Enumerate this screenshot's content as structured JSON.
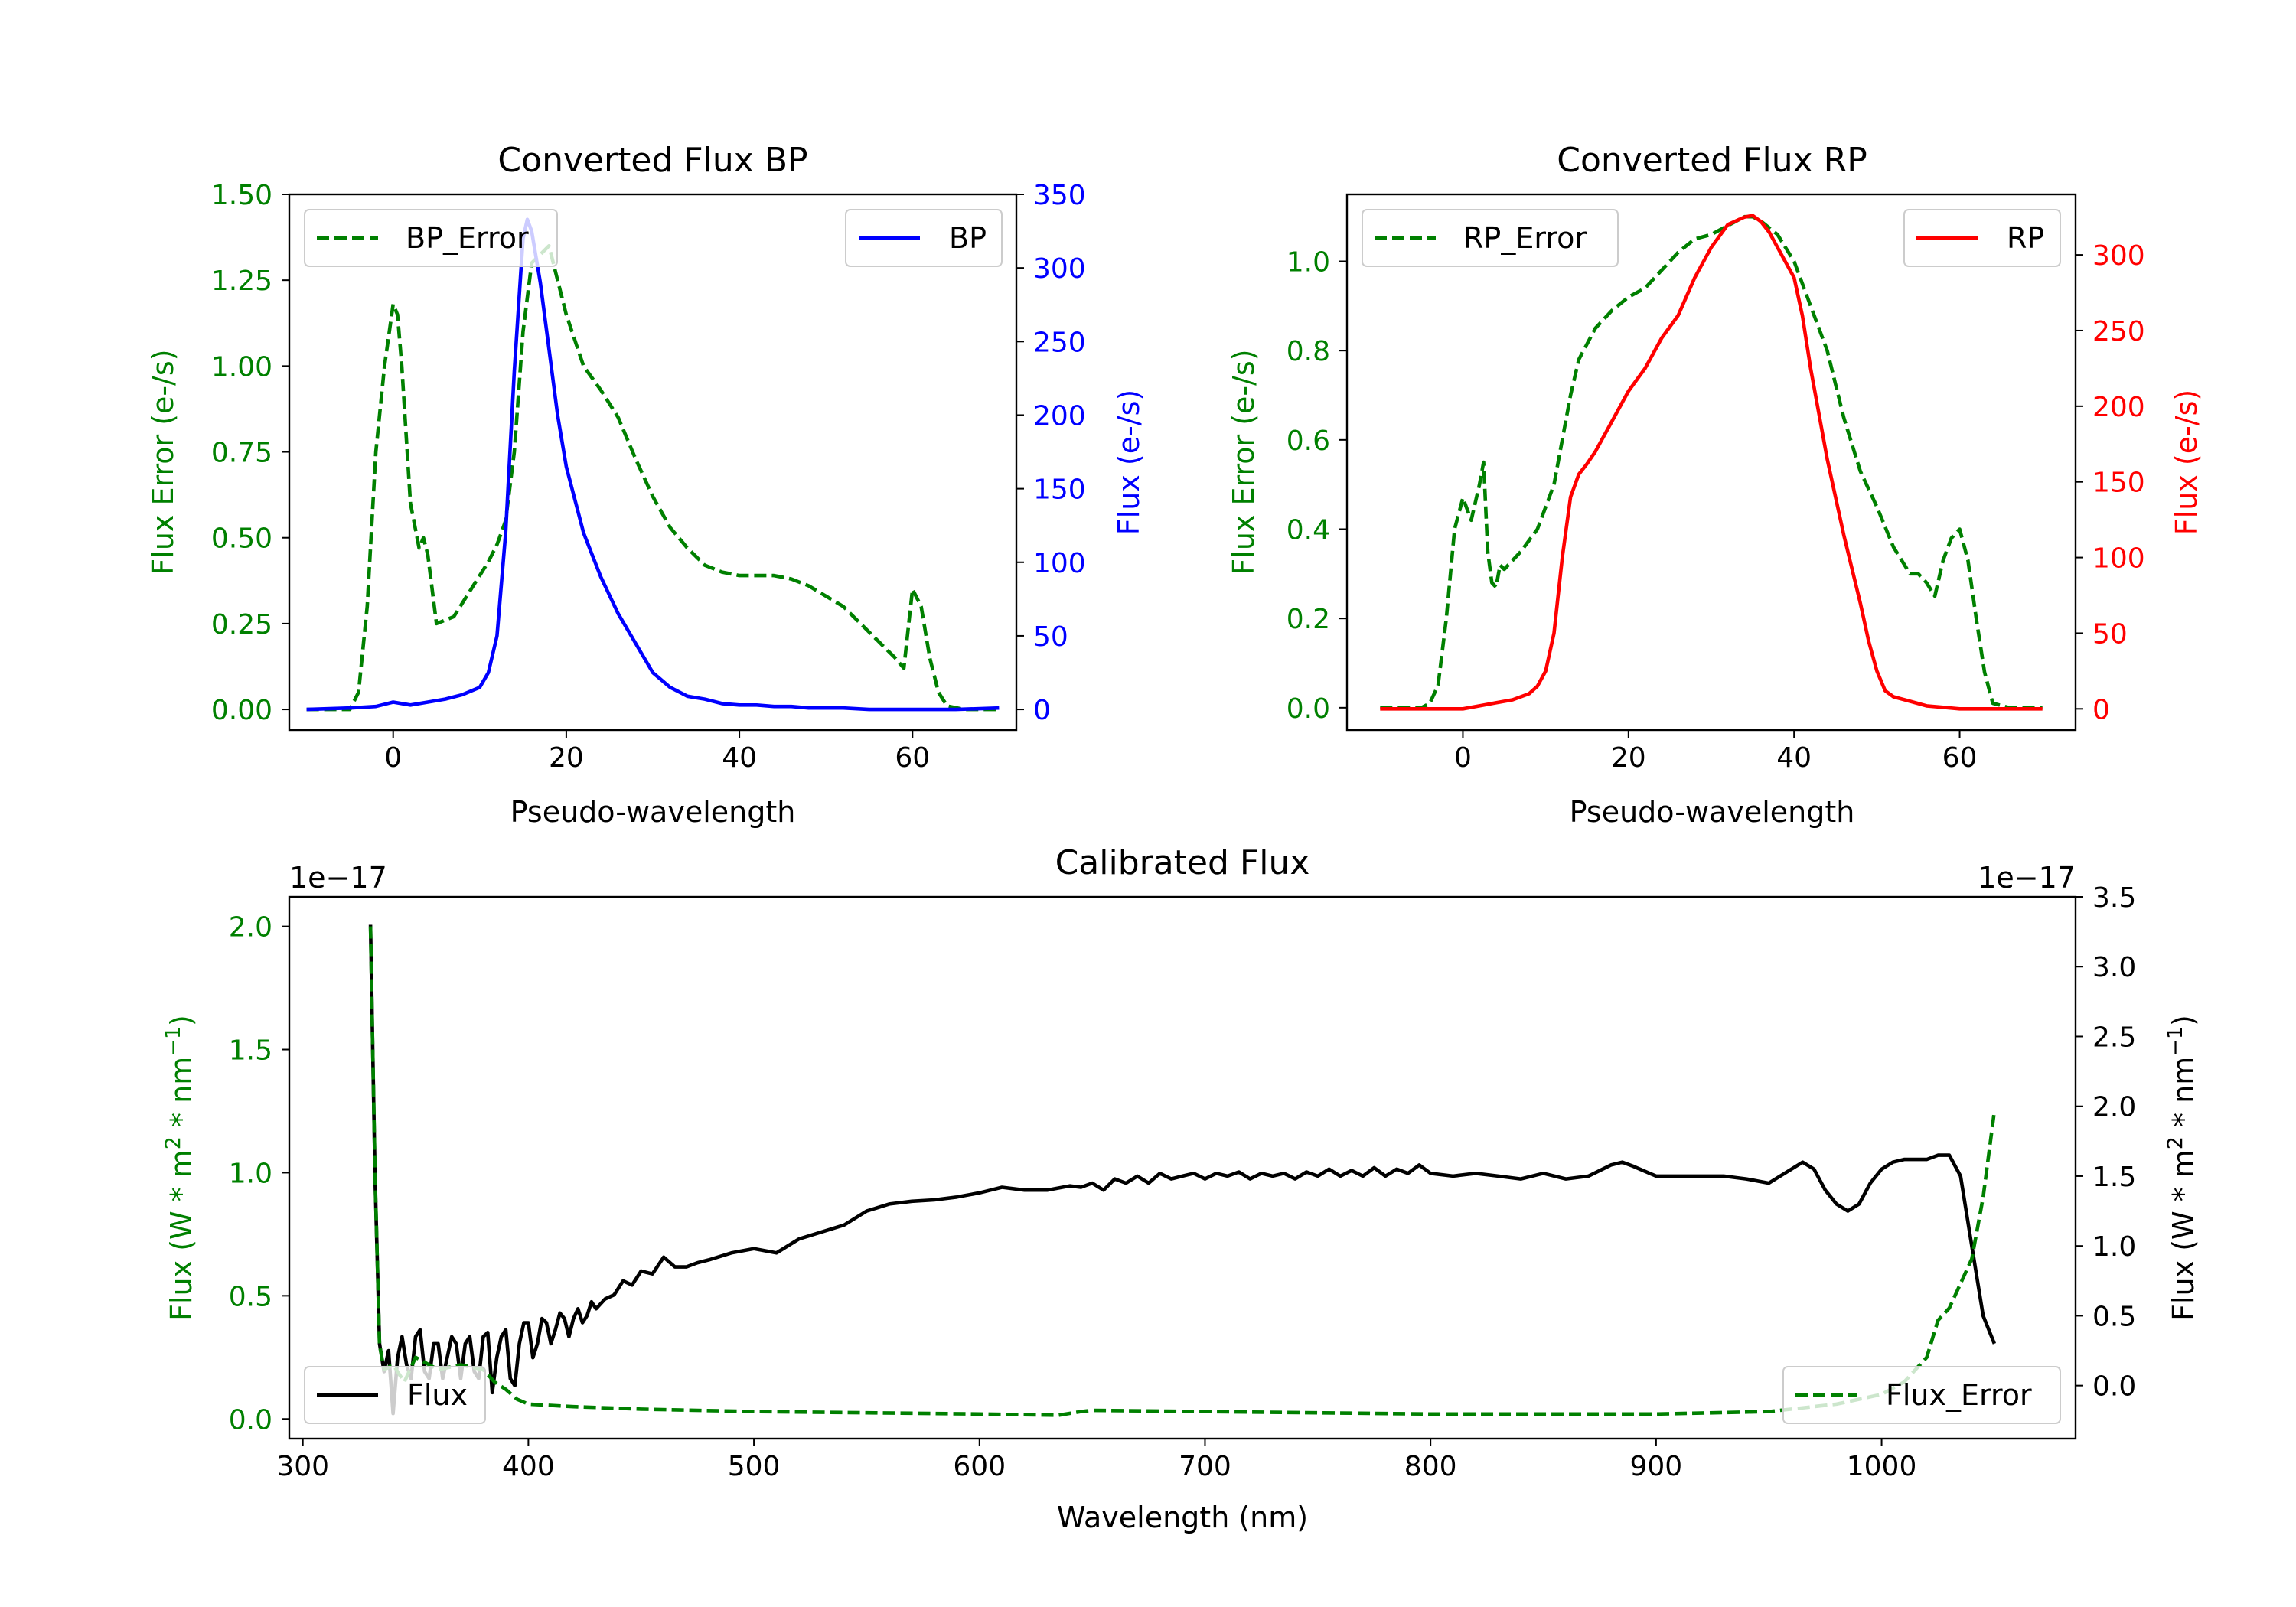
{
  "colors": {
    "green": "#008000",
    "blue": "#0000ff",
    "red": "#ff0000",
    "black": "#000000"
  },
  "chart_data": [
    {
      "id": "bp",
      "type": "line",
      "title": "Converted Flux BP",
      "xlabel": "Pseudo-wavelength",
      "ylabel_left": "Flux Error (e-/s)",
      "ylabel_right": "Flux (e-/s)",
      "xlim": [
        -12,
        72
      ],
      "ylim_left": [
        -0.06,
        1.5
      ],
      "ylim_right": [
        -14,
        350
      ],
      "xticks": [
        0,
        20,
        40,
        60
      ],
      "xtick_labels": [
        "0",
        "20",
        "40",
        "60"
      ],
      "yticks_left": [
        0,
        0.25,
        0.5,
        0.75,
        1.0,
        1.25,
        1.5
      ],
      "ytick_labels_left": [
        "0.00",
        "0.25",
        "0.50",
        "0.75",
        "1.00",
        "1.25",
        "1.50"
      ],
      "yticks_right": [
        0,
        50,
        100,
        150,
        200,
        250,
        300,
        350
      ],
      "ytick_labels_right": [
        "0",
        "50",
        "100",
        "150",
        "200",
        "250",
        "300",
        "350"
      ],
      "legend": [
        {
          "label": "BP_Error",
          "side": "left",
          "position": "top-left"
        },
        {
          "label": "BP",
          "side": "right",
          "position": "top-right"
        }
      ],
      "series": [
        {
          "name": "BP_Error",
          "axis": "left",
          "style": "dashed",
          "color": "#008000",
          "x": [
            -10,
            -5,
            -4,
            -3,
            -2,
            -1,
            0,
            0.5,
            1,
            2,
            3,
            3.5,
            4,
            5,
            7,
            9,
            11,
            12,
            13,
            14,
            15,
            16,
            18,
            20,
            22,
            24,
            26,
            28,
            30,
            32,
            34,
            36,
            38,
            40,
            42,
            44,
            46,
            48,
            50,
            52,
            54,
            56,
            58,
            59,
            60,
            61,
            62,
            63,
            64,
            66,
            68,
            70
          ],
          "y": [
            0,
            0,
            0.05,
            0.3,
            0.75,
            1.0,
            1.18,
            1.15,
            1.0,
            0.6,
            0.47,
            0.5,
            0.45,
            0.25,
            0.27,
            0.35,
            0.43,
            0.48,
            0.55,
            0.75,
            1.1,
            1.3,
            1.35,
            1.15,
            1.0,
            0.93,
            0.85,
            0.73,
            0.62,
            0.53,
            0.47,
            0.42,
            0.4,
            0.39,
            0.39,
            0.39,
            0.38,
            0.36,
            0.33,
            0.3,
            0.25,
            0.2,
            0.15,
            0.12,
            0.35,
            0.3,
            0.15,
            0.05,
            0.01,
            0,
            0,
            0
          ]
        },
        {
          "name": "BP",
          "axis": "right",
          "style": "solid",
          "color": "#0000ff",
          "x": [
            -10,
            -5,
            -2,
            0,
            2,
            4,
            6,
            8,
            10,
            11,
            12,
            13,
            14,
            15,
            15.5,
            16,
            17,
            18,
            19,
            20,
            22,
            24,
            26,
            28,
            30,
            32,
            34,
            36,
            38,
            40,
            42,
            44,
            46,
            48,
            50,
            52,
            55,
            58,
            60,
            62,
            65,
            70
          ],
          "y": [
            0,
            1,
            2,
            5,
            3,
            5,
            7,
            10,
            15,
            25,
            50,
            120,
            230,
            320,
            333,
            325,
            290,
            245,
            200,
            165,
            120,
            90,
            65,
            45,
            25,
            15,
            9,
            7,
            4,
            3,
            3,
            2,
            2,
            1,
            1,
            1,
            0,
            0,
            0,
            0,
            0,
            1
          ]
        }
      ]
    },
    {
      "id": "rp",
      "type": "line",
      "title": "Converted Flux RP",
      "xlabel": "Pseudo-wavelength",
      "ylabel_left": "Flux Error (e-/s)",
      "ylabel_right": "Flux (e-/s)",
      "xlim": [
        -14,
        74
      ],
      "ylim_left": [
        -0.05,
        1.15
      ],
      "ylim_right": [
        -14,
        340
      ],
      "xticks": [
        0,
        20,
        40,
        60
      ],
      "xtick_labels": [
        "0",
        "20",
        "40",
        "60"
      ],
      "yticks_left": [
        0,
        0.2,
        0.4,
        0.6,
        0.8,
        1.0
      ],
      "ytick_labels_left": [
        "0.0",
        "0.2",
        "0.4",
        "0.6",
        "0.8",
        "1.0"
      ],
      "yticks_right": [
        0,
        50,
        100,
        150,
        200,
        250,
        300
      ],
      "ytick_labels_right": [
        "0",
        "50",
        "100",
        "150",
        "200",
        "250",
        "300"
      ],
      "legend": [
        {
          "label": "RP_Error",
          "side": "left",
          "position": "top-left"
        },
        {
          "label": "RP",
          "side": "right",
          "position": "top-right"
        }
      ],
      "series": [
        {
          "name": "RP_Error",
          "axis": "left",
          "style": "dashed",
          "color": "#008000",
          "x": [
            -10,
            -5,
            -4,
            -3,
            -2,
            -1,
            0,
            1,
            2,
            2.5,
            3,
            3.5,
            4,
            4.5,
            5,
            7,
            9,
            11,
            12,
            13,
            14,
            16,
            18,
            20,
            22,
            24,
            26,
            28,
            30,
            32,
            34,
            35,
            36,
            38,
            40,
            42,
            44,
            46,
            48,
            50,
            52,
            54,
            55,
            56,
            57,
            58,
            59,
            60,
            61,
            62,
            63,
            64,
            66,
            70
          ],
          "y": [
            0,
            0,
            0.01,
            0.05,
            0.2,
            0.4,
            0.47,
            0.42,
            0.5,
            0.55,
            0.35,
            0.28,
            0.27,
            0.32,
            0.31,
            0.35,
            0.4,
            0.5,
            0.6,
            0.7,
            0.78,
            0.85,
            0.89,
            0.92,
            0.94,
            0.98,
            1.02,
            1.05,
            1.06,
            1.08,
            1.1,
            1.1,
            1.09,
            1.06,
            1.0,
            0.9,
            0.8,
            0.65,
            0.53,
            0.45,
            0.36,
            0.3,
            0.3,
            0.28,
            0.25,
            0.33,
            0.38,
            0.4,
            0.33,
            0.2,
            0.08,
            0.01,
            0,
            0
          ]
        },
        {
          "name": "RP",
          "axis": "right",
          "style": "solid",
          "color": "#ff0000",
          "x": [
            -10,
            -5,
            0,
            2,
            4,
            6,
            8,
            9,
            10,
            11,
            12,
            13,
            14,
            15,
            16,
            18,
            20,
            22,
            24,
            26,
            28,
            30,
            32,
            34,
            35,
            36,
            37,
            38,
            40,
            41,
            42,
            44,
            46,
            48,
            49,
            50,
            51,
            52,
            54,
            56,
            58,
            60,
            62,
            65,
            70
          ],
          "y": [
            0,
            0,
            0,
            2,
            4,
            6,
            10,
            15,
            25,
            50,
            100,
            140,
            155,
            162,
            170,
            190,
            210,
            225,
            245,
            260,
            285,
            305,
            320,
            325,
            326,
            322,
            315,
            305,
            285,
            260,
            225,
            165,
            115,
            70,
            45,
            25,
            12,
            8,
            5,
            2,
            1,
            0,
            0,
            0,
            0
          ]
        }
      ]
    },
    {
      "id": "calibrated",
      "type": "line",
      "title": "Calibrated Flux",
      "xlabel": "Wavelength (nm)",
      "ylabel_left": "Flux (W * m$^2$ * nm$^{-1}$)",
      "ylabel_right": "Flux (W * m$^2$ * nm$^{-1}$)",
      "offset_left": "1e−17",
      "offset_right": "1e−17",
      "xlim": [
        294,
        1086
      ],
      "ylim_left": [
        -0.08,
        2.12
      ],
      "ylim_right": [
        -0.38,
        3.5
      ],
      "xticks": [
        300,
        400,
        500,
        600,
        700,
        800,
        900,
        1000
      ],
      "xtick_labels": [
        "300",
        "400",
        "500",
        "600",
        "700",
        "800",
        "900",
        "1000"
      ],
      "yticks_left": [
        0,
        0.5,
        1.0,
        1.5,
        2.0
      ],
      "ytick_labels_left": [
        "0.0",
        "0.5",
        "1.0",
        "1.5",
        "2.0"
      ],
      "yticks_right": [
        0,
        0.5,
        1.0,
        1.5,
        2.0,
        2.5,
        3.0,
        3.5
      ],
      "ytick_labels_right": [
        "0.0",
        "0.5",
        "1.0",
        "1.5",
        "2.0",
        "2.5",
        "3.0",
        "3.5"
      ],
      "legend": [
        {
          "label": "Flux",
          "side": "right",
          "position": "bottom-left"
        },
        {
          "label": "Flux_Error",
          "side": "left",
          "position": "bottom-right"
        }
      ],
      "series": [
        {
          "name": "Flux",
          "axis": "right",
          "style": "solid",
          "color": "#000000",
          "x": [
            330,
            332,
            334,
            336,
            338,
            340,
            342,
            344,
            346,
            348,
            350,
            352,
            354,
            356,
            358,
            360,
            362,
            364,
            366,
            368,
            370,
            372,
            374,
            376,
            378,
            380,
            382,
            384,
            386,
            388,
            390,
            392,
            394,
            396,
            398,
            400,
            402,
            404,
            406,
            408,
            410,
            412,
            414,
            416,
            418,
            420,
            422,
            424,
            426,
            428,
            430,
            434,
            438,
            442,
            446,
            450,
            455,
            460,
            465,
            470,
            475,
            480,
            490,
            500,
            510,
            520,
            530,
            540,
            550,
            560,
            570,
            580,
            590,
            600,
            605,
            610,
            620,
            630,
            640,
            645,
            650,
            655,
            660,
            665,
            670,
            675,
            680,
            685,
            690,
            695,
            700,
            705,
            710,
            715,
            720,
            725,
            730,
            735,
            740,
            745,
            750,
            755,
            760,
            765,
            770,
            775,
            780,
            785,
            790,
            795,
            800,
            810,
            820,
            830,
            840,
            850,
            860,
            870,
            880,
            885,
            890,
            900,
            910,
            920,
            930,
            940,
            950,
            960,
            965,
            970,
            975,
            980,
            985,
            990,
            995,
            1000,
            1005,
            1010,
            1020,
            1025,
            1030,
            1035,
            1040,
            1045,
            1050
          ],
          "y": [
            3.3,
            1.5,
            0.3,
            0.1,
            0.25,
            -0.2,
            0.2,
            0.35,
            0.15,
            0.05,
            0.35,
            0.4,
            0.1,
            0.05,
            0.3,
            0.3,
            0.05,
            0.2,
            0.35,
            0.3,
            0.05,
            0.3,
            0.35,
            0.1,
            0.05,
            0.35,
            0.38,
            -0.05,
            0.2,
            0.35,
            0.4,
            0.05,
            0.0,
            0.3,
            0.45,
            0.45,
            0.2,
            0.3,
            0.48,
            0.45,
            0.3,
            0.4,
            0.52,
            0.48,
            0.35,
            0.48,
            0.55,
            0.45,
            0.5,
            0.6,
            0.55,
            0.62,
            0.65,
            0.75,
            0.72,
            0.82,
            0.8,
            0.92,
            0.85,
            0.85,
            0.88,
            0.9,
            0.95,
            0.98,
            0.95,
            1.05,
            1.1,
            1.15,
            1.25,
            1.3,
            1.32,
            1.33,
            1.35,
            1.38,
            1.4,
            1.42,
            1.4,
            1.4,
            1.43,
            1.42,
            1.45,
            1.4,
            1.48,
            1.45,
            1.5,
            1.45,
            1.52,
            1.48,
            1.5,
            1.52,
            1.48,
            1.52,
            1.5,
            1.53,
            1.48,
            1.52,
            1.5,
            1.52,
            1.48,
            1.53,
            1.5,
            1.55,
            1.5,
            1.54,
            1.5,
            1.56,
            1.5,
            1.55,
            1.52,
            1.58,
            1.52,
            1.5,
            1.52,
            1.5,
            1.48,
            1.52,
            1.48,
            1.5,
            1.58,
            1.6,
            1.57,
            1.5,
            1.5,
            1.5,
            1.5,
            1.48,
            1.45,
            1.55,
            1.6,
            1.55,
            1.4,
            1.3,
            1.25,
            1.3,
            1.45,
            1.55,
            1.6,
            1.62,
            1.62,
            1.65,
            1.65,
            1.5,
            1.0,
            0.5,
            0.3
          ]
        },
        {
          "name": "Flux_Error",
          "axis": "left",
          "style": "dashed",
          "color": "#008000",
          "x": [
            330,
            332,
            334,
            336,
            340,
            345,
            350,
            360,
            370,
            380,
            385,
            390,
            395,
            400,
            420,
            450,
            500,
            550,
            600,
            635,
            645,
            650,
            700,
            750,
            800,
            850,
            900,
            950,
            980,
            1000,
            1010,
            1020,
            1025,
            1030,
            1035,
            1040,
            1045,
            1050
          ],
          "y": [
            2.0,
            1.0,
            0.3,
            0.2,
            0.22,
            0.15,
            0.25,
            0.2,
            0.22,
            0.2,
            0.15,
            0.12,
            0.08,
            0.06,
            0.05,
            0.04,
            0.03,
            0.025,
            0.02,
            0.015,
            0.03,
            0.035,
            0.03,
            0.025,
            0.02,
            0.02,
            0.02,
            0.03,
            0.06,
            0.1,
            0.15,
            0.25,
            0.4,
            0.45,
            0.55,
            0.65,
            0.9,
            1.25
          ]
        }
      ]
    }
  ]
}
